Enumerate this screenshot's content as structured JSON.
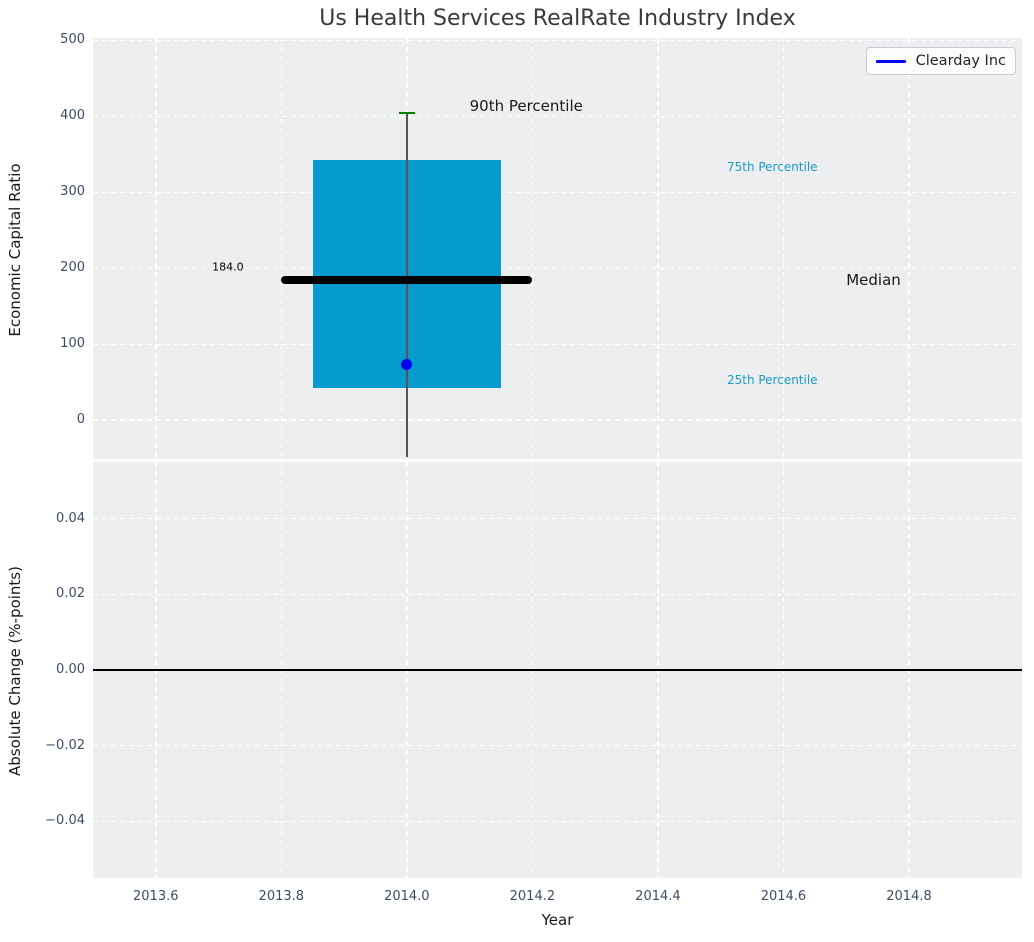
{
  "title": "Us Health Services RealRate Industry Index",
  "legend": {
    "label": "Clearday Inc",
    "line_color": "#0000ee"
  },
  "colors": {
    "figure_bg": "#ffffff",
    "axes_bg": "#eceef0",
    "grid": "#ffffff",
    "tick_label": "#3d4d66",
    "box_fill": "#069bce",
    "median_line": "#000000",
    "whisker": "#555555",
    "percentile_cap_green": "#008000",
    "company_dot_blue": "#0000ee",
    "annotation_cyan": "#1b9cc9",
    "annotation_dark": "#1a1a1a",
    "zero_line": "#000000"
  },
  "chart_data": [
    {
      "type": "box",
      "title": "Us Health Services RealRate Industry Index",
      "ylabel": "Economic Capital Ratio",
      "xlim": [
        2013.5,
        2014.98
      ],
      "ylim": [
        -51,
        503
      ],
      "yticks": [
        500,
        400,
        300,
        200,
        100,
        0
      ],
      "ytick_labels": [
        "500",
        "400",
        "300",
        "200",
        "100",
        "0"
      ],
      "xticks": [
        2013.6,
        2013.8,
        2014.0,
        2014.2,
        2014.4,
        2014.6,
        2014.8
      ],
      "grid": true,
      "legend_position": "upper right",
      "box": {
        "x": 2014.0,
        "box_halfwidth": 0.15,
        "q1": 43,
        "median": 184.0,
        "q3": 343,
        "median_halfwidth": 0.2,
        "p90": 404,
        "whisker_low": -48,
        "cap_halfwidth": 0.013
      },
      "company_point": {
        "name": "Clearday Inc",
        "x": 2014.0,
        "y": 73
      },
      "annotations": [
        {
          "text": "90th Percentile",
          "x": 2014.1,
          "y": 414,
          "ha": "left",
          "size": 15,
          "color": "#1a1a1a"
        },
        {
          "text": "75th Percentile",
          "x": 2014.51,
          "y": 333,
          "ha": "left",
          "size": 12,
          "color": "#1b9cc9"
        },
        {
          "text": "Median",
          "x": 2014.7,
          "y": 184,
          "ha": "left",
          "size": 15,
          "color": "#1a1a1a"
        },
        {
          "text": "25th Percentile",
          "x": 2014.51,
          "y": 53,
          "ha": "left",
          "size": 12,
          "color": "#1b9cc9"
        },
        {
          "text": "184.0",
          "x": 2013.74,
          "y": 202,
          "ha": "right",
          "size": 11,
          "color": "#000000"
        }
      ]
    },
    {
      "type": "line",
      "ylabel": "Absolute Change (%-points)",
      "xlabel": "Year",
      "xlim": [
        2013.5,
        2014.98
      ],
      "ylim": [
        -0.055,
        0.055
      ],
      "yticks": [
        0.04,
        0.02,
        0.0,
        -0.02,
        -0.04
      ],
      "ytick_labels": [
        "0.04",
        "0.02",
        "0.00",
        "−0.02",
        "−0.04"
      ],
      "xticks": [
        2013.6,
        2013.8,
        2014.0,
        2014.2,
        2014.4,
        2014.6,
        2014.8
      ],
      "xtick_labels": [
        "2013.6",
        "2013.8",
        "2014.0",
        "2014.2",
        "2014.4",
        "2014.6",
        "2014.8"
      ],
      "zero_line": 0.0,
      "grid": true,
      "series": []
    }
  ]
}
